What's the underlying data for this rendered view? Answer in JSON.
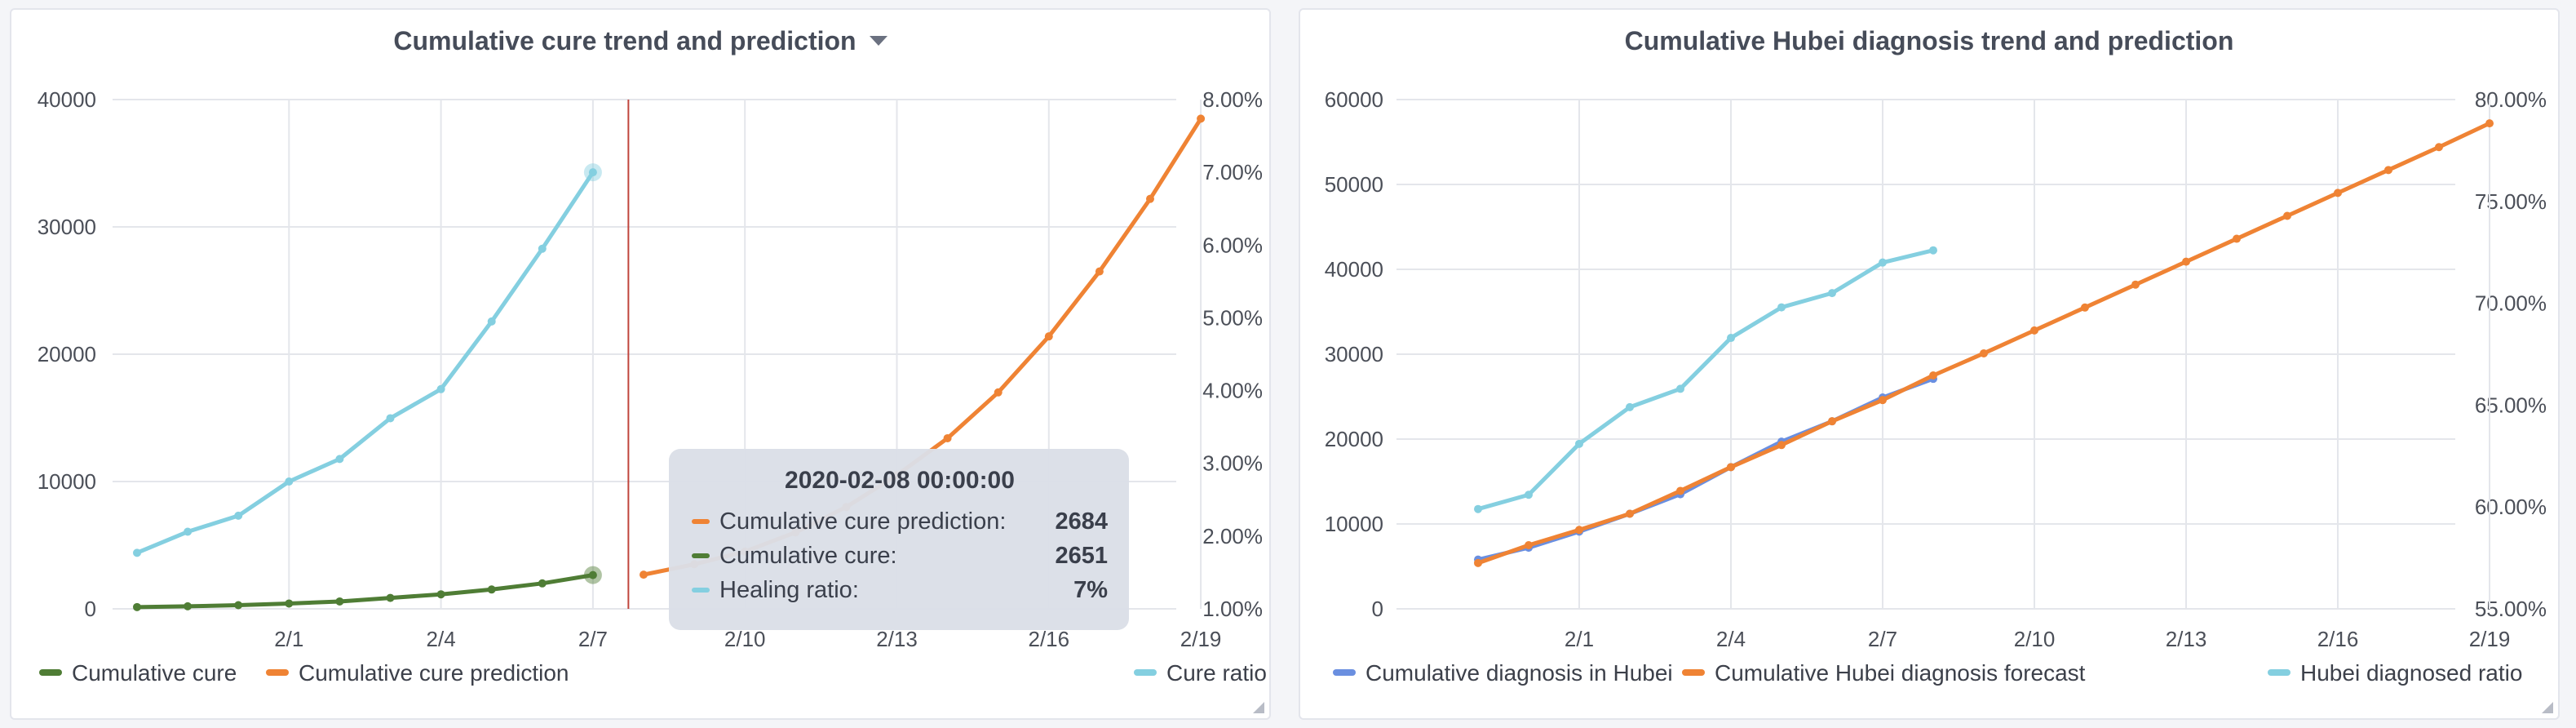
{
  "charts": [
    {
      "title": "Cumulative cure trend and prediction",
      "tooltip": {
        "title": "2020-02-08 00:00:00",
        "rows": [
          {
            "label": "Cumulative cure prediction:",
            "value": "2684",
            "color": "#ef8334"
          },
          {
            "label": "Cumulative cure:",
            "value": "2651",
            "color": "#4f7d35"
          },
          {
            "label": "Healing ratio:",
            "value": "7%",
            "color": "#84cfe0"
          }
        ]
      }
    },
    {
      "title": "Cumulative Hubei diagnosis trend and prediction"
    }
  ],
  "chart_data": [
    {
      "type": "line",
      "title": "Cumulative cure trend and prediction",
      "x": [
        "1/29",
        "1/30",
        "1/31",
        "2/1",
        "2/2",
        "2/3",
        "2/4",
        "2/5",
        "2/6",
        "2/7",
        "2/8",
        "2/9",
        "2/10",
        "2/11",
        "2/12",
        "2/13",
        "2/14",
        "2/15",
        "2/16",
        "2/17",
        "2/18",
        "2/19"
      ],
      "xticks": [
        "2/1",
        "2/4",
        "2/7",
        "2/10",
        "2/13",
        "2/16",
        "2/19"
      ],
      "ylim": [
        0,
        40000
      ],
      "yticks": [
        "0",
        "10000",
        "20000",
        "30000",
        "40000"
      ],
      "y2lim": [
        1,
        8
      ],
      "y2ticks": [
        "1.00%",
        "2.00%",
        "3.00%",
        "4.00%",
        "5.00%",
        "6.00%",
        "7.00%",
        "8.00%"
      ],
      "series": [
        {
          "name": "Cumulative cure",
          "axis": "left",
          "color": "#4f7d35",
          "values": [
            140,
            200,
            290,
            420,
            580,
            860,
            1140,
            1520,
            2000,
            2651,
            null,
            null,
            null,
            null,
            null,
            null,
            null,
            null,
            null,
            null,
            null,
            null
          ]
        },
        {
          "name": "Cumulative cure prediction",
          "axis": "left",
          "color": "#ef8334",
          "values": [
            null,
            null,
            null,
            null,
            null,
            null,
            null,
            null,
            null,
            null,
            2684,
            3500,
            4500,
            6000,
            8000,
            10500,
            13400,
            17000,
            21400,
            26500,
            32200,
            38500
          ]
        },
        {
          "name": "Cure ratio",
          "axis": "right",
          "color": "#84cfe0",
          "values": [
            1.77,
            2.06,
            2.28,
            2.75,
            3.06,
            3.62,
            4.02,
            4.95,
            5.95,
            7.0,
            null,
            null,
            null,
            null,
            null,
            null,
            null,
            null,
            null,
            null,
            null,
            null
          ]
        }
      ],
      "highlight_x": "2/8",
      "legend_left": [
        "Cumulative cure",
        "Cumulative cure prediction"
      ],
      "legend_right": [
        "Cure ratio"
      ],
      "grid": true
    },
    {
      "type": "line",
      "title": "Cumulative Hubei diagnosis trend and prediction",
      "x": [
        "1/29",
        "1/30",
        "1/31",
        "2/1",
        "2/2",
        "2/3",
        "2/4",
        "2/5",
        "2/6",
        "2/7",
        "2/8",
        "2/9",
        "2/10",
        "2/11",
        "2/12",
        "2/13",
        "2/14",
        "2/15",
        "2/16",
        "2/17",
        "2/18",
        "2/19"
      ],
      "xticks": [
        "2/1",
        "2/4",
        "2/7",
        "2/10",
        "2/13",
        "2/16",
        "2/19"
      ],
      "ylim": [
        0,
        60000
      ],
      "yticks": [
        "0",
        "10000",
        "20000",
        "30000",
        "40000",
        "50000",
        "60000"
      ],
      "y2lim": [
        55,
        80
      ],
      "y2ticks": [
        "55.00%",
        "60.00%",
        "65.00%",
        "70.00%",
        "75.00%",
        "80.00%"
      ],
      "series": [
        {
          "name": "Cumulative diagnosis in Hubei",
          "axis": "left",
          "color": "#6a8fe0",
          "values": [
            null,
            5800,
            7200,
            9100,
            11200,
            13500,
            16700,
            19700,
            22100,
            24900,
            27100,
            null,
            null,
            null,
            null,
            null,
            null,
            null,
            null,
            null,
            null,
            null
          ]
        },
        {
          "name": "Cumulative Hubei diagnosis forecast",
          "axis": "left",
          "color": "#ef8334",
          "values": [
            null,
            5400,
            7500,
            9300,
            11200,
            13900,
            16700,
            19300,
            22100,
            24600,
            27500,
            30100,
            32800,
            35500,
            38200,
            40900,
            43600,
            46300,
            49000,
            51700,
            54400,
            57200
          ]
        },
        {
          "name": "Hubei diagnosed ratio",
          "axis": "right",
          "color": "#84cfe0",
          "values": [
            null,
            59.9,
            60.6,
            63.1,
            64.9,
            65.8,
            68.3,
            69.8,
            70.5,
            72.0,
            72.6,
            null,
            null,
            null,
            null,
            null,
            null,
            null,
            null,
            null,
            null,
            null
          ]
        }
      ],
      "legend_left": [
        "Cumulative diagnosis in Hubei",
        "Cumulative Hubei diagnosis forecast"
      ],
      "legend_right": [
        "Hubei diagnosed ratio"
      ],
      "grid": true
    }
  ]
}
